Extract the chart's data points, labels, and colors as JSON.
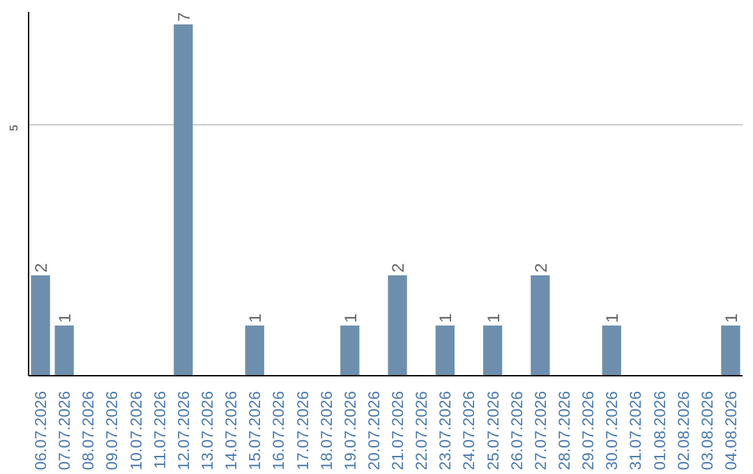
{
  "chart_data": {
    "type": "bar",
    "categories": [
      "06.07.2026",
      "07.07.2026",
      "08.07.2026",
      "09.07.2026",
      "10.07.2026",
      "11.07.2026",
      "12.07.2026",
      "13.07.2026",
      "14.07.2026",
      "15.07.2026",
      "16.07.2026",
      "17.07.2026",
      "18.07.2026",
      "19.07.2026",
      "20.07.2026",
      "21.07.2026",
      "22.07.2026",
      "23.07.2026",
      "24.07.2026",
      "25.07.2026",
      "26.07.2026",
      "27.07.2026",
      "28.07.2026",
      "29.07.2026",
      "30.07.2026",
      "31.07.2026",
      "01.08.2026",
      "02.08.2026",
      "03.08.2026",
      "04.08.2026"
    ],
    "values": [
      2,
      1,
      0,
      0,
      0,
      0,
      7,
      0,
      0,
      1,
      0,
      0,
      0,
      1,
      0,
      2,
      0,
      1,
      0,
      1,
      0,
      2,
      0,
      0,
      1,
      0,
      0,
      0,
      0,
      1
    ],
    "value_labels": [
      "2",
      "1",
      null,
      null,
      null,
      null,
      "7",
      null,
      null,
      "1",
      null,
      null,
      null,
      "1",
      null,
      "2",
      null,
      "1",
      null,
      "1",
      null,
      "2",
      null,
      null,
      "1",
      null,
      null,
      null,
      null,
      "1"
    ],
    "color": "#6d8fad",
    "ylim": [
      0,
      7.25
    ],
    "yticks": [
      5
    ],
    "grid": "y"
  }
}
